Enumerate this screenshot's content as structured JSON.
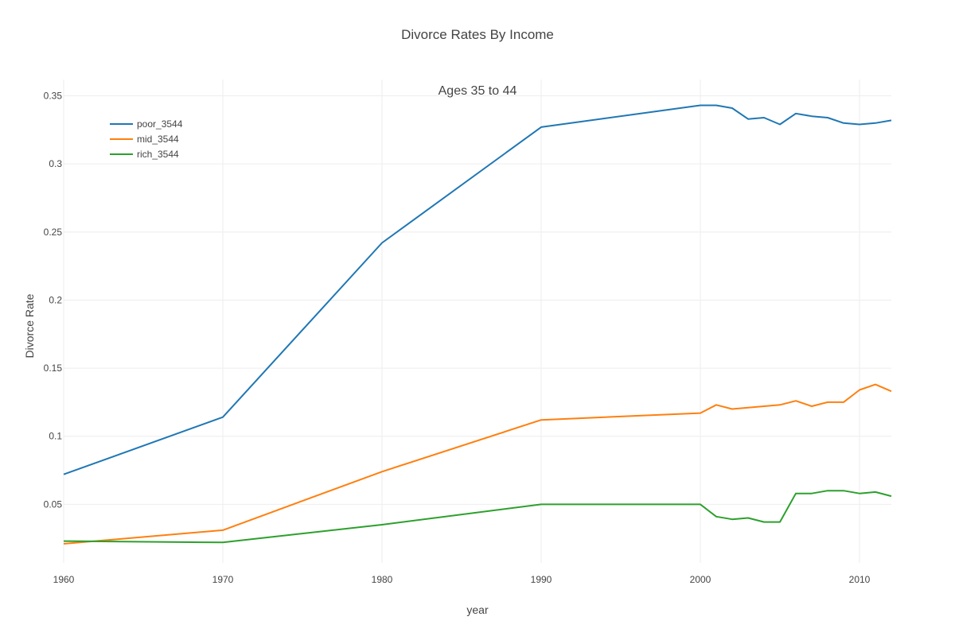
{
  "chart_data": {
    "type": "line",
    "title": "Divorce Rates By Income",
    "annotation": "Ages 35 to 44",
    "xlabel": "year",
    "ylabel": "Divorce Rate",
    "xlim": [
      1960,
      2012
    ],
    "ylim": [
      0.007,
      0.362
    ],
    "x_ticks": [
      1960,
      1970,
      1980,
      1990,
      2000,
      2010
    ],
    "x_tick_labels": [
      "1960",
      "1970",
      "1980",
      "1990",
      "2000",
      "2010"
    ],
    "y_ticks": [
      0.05,
      0.1,
      0.15,
      0.2,
      0.25,
      0.3,
      0.35
    ],
    "y_tick_labels": [
      "0.05",
      "0.1",
      "0.15",
      "0.2",
      "0.25",
      "0.3",
      "0.35"
    ],
    "grid": true,
    "legend_position": "top-left",
    "x": [
      1960,
      1970,
      1980,
      1990,
      2000,
      2001,
      2002,
      2003,
      2004,
      2005,
      2006,
      2007,
      2008,
      2009,
      2010,
      2011,
      2012
    ],
    "series": [
      {
        "name": "poor_3544",
        "color": "#1f77b4",
        "values": [
          0.072,
          0.114,
          0.242,
          0.327,
          0.343,
          0.343,
          0.341,
          0.333,
          0.334,
          0.329,
          0.337,
          0.335,
          0.334,
          0.33,
          0.329,
          0.33,
          0.332
        ]
      },
      {
        "name": "mid_3544",
        "color": "#ff7f0e",
        "values": [
          0.021,
          0.031,
          0.074,
          0.112,
          0.117,
          0.123,
          0.12,
          0.121,
          0.122,
          0.123,
          0.126,
          0.122,
          0.125,
          0.125,
          0.134,
          0.138,
          0.133
        ]
      },
      {
        "name": "rich_3544",
        "color": "#2ca02c",
        "values": [
          0.023,
          0.022,
          0.035,
          0.05,
          0.05,
          0.041,
          0.039,
          0.04,
          0.037,
          0.037,
          0.058,
          0.058,
          0.06,
          0.06,
          0.058,
          0.059,
          0.056
        ]
      }
    ]
  }
}
